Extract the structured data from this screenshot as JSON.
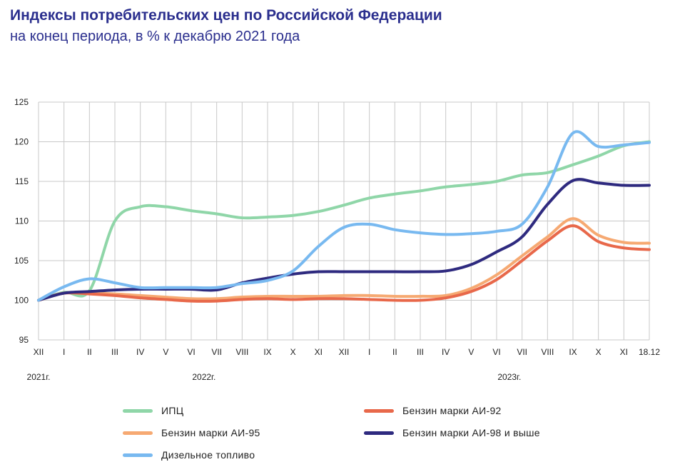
{
  "title": "Индексы потребительских цен по Российской Федерации",
  "subtitle": "на конец периода, в % к декабрю 2021 года",
  "chart_data": {
    "type": "line",
    "ylim": [
      95,
      125
    ],
    "yticks": [
      95,
      100,
      105,
      110,
      115,
      120,
      125
    ],
    "grid": true,
    "legend_position": "bottom",
    "x_labels": [
      "XII",
      "I",
      "II",
      "III",
      "IV",
      "V",
      "VI",
      "VII",
      "VIII",
      "IX",
      "X",
      "XI",
      "XII",
      "I",
      "II",
      "III",
      "IV",
      "V",
      "VI",
      "VII",
      "VIII",
      "IX",
      "X",
      "XI",
      "18.12"
    ],
    "year_labels": [
      {
        "label": "2021г.",
        "at": 0
      },
      {
        "label": "2022г.",
        "at": 6.5
      },
      {
        "label": "2023г.",
        "at": 18.5
      }
    ],
    "series": [
      {
        "name": "ИПЦ",
        "color": "#8fd6a8",
        "values": [
          100,
          101,
          101.2,
          110,
          111.8,
          111.8,
          111.3,
          110.9,
          110.4,
          110.5,
          110.7,
          111.2,
          112,
          112.9,
          113.4,
          113.8,
          114.3,
          114.6,
          115,
          115.8,
          116.1,
          117.1,
          118.2,
          119.5,
          120
        ]
      },
      {
        "name": "Бензин марки АИ-92",
        "color": "#e8684a",
        "values": [
          100,
          100.9,
          100.8,
          100.6,
          100.3,
          100.1,
          99.9,
          99.9,
          100.1,
          100.2,
          100.1,
          100.2,
          100.2,
          100.1,
          100,
          100,
          100.3,
          101.1,
          102.6,
          105,
          107.5,
          109.4,
          107.4,
          106.6,
          106.4
        ]
      },
      {
        "name": "Бензин марки АИ-95",
        "color": "#f6a972",
        "values": [
          100,
          100.9,
          100.9,
          100.8,
          100.6,
          100.4,
          100.2,
          100.2,
          100.4,
          100.5,
          100.5,
          100.5,
          100.6,
          100.6,
          100.5,
          100.5,
          100.6,
          101.5,
          103.2,
          105.6,
          108,
          110.3,
          108.2,
          107.3,
          107.2
        ]
      },
      {
        "name": "Бензин марки АИ-98 и выше",
        "color": "#2e2a7f",
        "values": [
          100,
          100.9,
          101.1,
          101.3,
          101.4,
          101.4,
          101.4,
          101.3,
          102.2,
          102.8,
          103.3,
          103.6,
          103.6,
          103.6,
          103.6,
          103.6,
          103.7,
          104.5,
          106.1,
          108,
          112.1,
          115.1,
          114.8,
          114.5,
          114.5
        ]
      },
      {
        "name": "Дизельное топливо",
        "color": "#78b9f0",
        "values": [
          100,
          101.7,
          102.7,
          102.2,
          101.6,
          101.6,
          101.6,
          101.6,
          102.1,
          102.5,
          103.7,
          106.8,
          109.2,
          109.6,
          108.9,
          108.5,
          108.3,
          108.4,
          108.7,
          109.6,
          114.3,
          121.1,
          119.4,
          119.6,
          119.9
        ]
      }
    ]
  },
  "legend": [
    {
      "label": "ИПЦ",
      "color": "#8fd6a8"
    },
    {
      "label": "Бензин марки АИ-92",
      "color": "#e8684a"
    },
    {
      "label": "Бензин марки АИ-95",
      "color": "#f6a972"
    },
    {
      "label": "Бензин марки АИ-98 и выше",
      "color": "#2e2a7f"
    },
    {
      "label": "Дизельное топливо",
      "color": "#78b9f0"
    }
  ]
}
